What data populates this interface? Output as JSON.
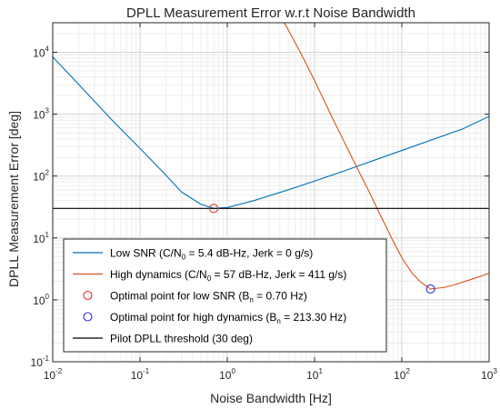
{
  "chart_data": {
    "type": "line",
    "title": "DPLL Measurement Error w.r.t Noise Bandwidth",
    "xlabel": "Noise Bandwidth [Hz]",
    "ylabel": "DPLL Measurement Error [deg]",
    "xscale": "log",
    "yscale": "log",
    "xlim": [
      0.01,
      1000
    ],
    "ylim": [
      0.1,
      30000
    ],
    "grid": true,
    "minor_grid": true,
    "legend_position": "lower-left",
    "x_ticks": [
      {
        "base": "10",
        "exp": "-2",
        "value": 0.01
      },
      {
        "base": "10",
        "exp": "-1",
        "value": 0.1
      },
      {
        "base": "10",
        "exp": "0",
        "value": 1
      },
      {
        "base": "10",
        "exp": "1",
        "value": 10
      },
      {
        "base": "10",
        "exp": "2",
        "value": 100
      },
      {
        "base": "10",
        "exp": "3",
        "value": 1000
      }
    ],
    "y_ticks": [
      {
        "base": "10",
        "exp": "-1",
        "value": 0.1
      },
      {
        "base": "10",
        "exp": "0",
        "value": 1
      },
      {
        "base": "10",
        "exp": "1",
        "value": 10
      },
      {
        "base": "10",
        "exp": "2",
        "value": 100
      },
      {
        "base": "10",
        "exp": "3",
        "value": 1000
      },
      {
        "base": "10",
        "exp": "4",
        "value": 10000
      }
    ],
    "series": [
      {
        "name_parts": [
          "Low SNR (C/N",
          "0",
          " = 5.4 dB-Hz, Jerk = 0 g/s)"
        ],
        "color": "#0072BD",
        "x": [
          0.01,
          0.02,
          0.05,
          0.1,
          0.2,
          0.3,
          0.5,
          0.7,
          1,
          2,
          5,
          10,
          20,
          50,
          100,
          200,
          500,
          1000
        ],
        "y": [
          8400,
          2990,
          749,
          280,
          102,
          55,
          35,
          30,
          31,
          40,
          60,
          83,
          116,
          183,
          259,
          366,
          580,
          920
        ]
      },
      {
        "name_parts": [
          "High dynamics (C/N",
          "0",
          " = 57 dB-Hz, Jerk = 411 g/s)"
        ],
        "color": "#D95319",
        "x": [
          4.5,
          5,
          7,
          10,
          15,
          20,
          30,
          40,
          60,
          80,
          100,
          130,
          160,
          213.3,
          300,
          400,
          600,
          800,
          1000
        ],
        "y": [
          30000,
          23000,
          9500,
          3500,
          1050,
          460,
          145,
          65,
          20,
          8.7,
          4.8,
          2.75,
          2.0,
          1.5,
          1.58,
          1.75,
          2.1,
          2.4,
          2.7
        ]
      },
      {
        "name": "Pilot DPLL threshold (30 deg)",
        "color": "#000000",
        "x": [
          0.01,
          1000
        ],
        "y": [
          30,
          30
        ]
      }
    ],
    "markers": [
      {
        "name_parts": [
          "Optimal point for low SNR (B",
          "n",
          " = 0.70 Hz)"
        ],
        "x": 0.7,
        "y": 30,
        "color": "#D9342B"
      },
      {
        "name_parts": [
          "Optimal point for high dynamics (B",
          "n",
          " = 213.30 Hz)"
        ],
        "x": 213.3,
        "y": 1.5,
        "color": "#2B2BD9"
      }
    ]
  }
}
